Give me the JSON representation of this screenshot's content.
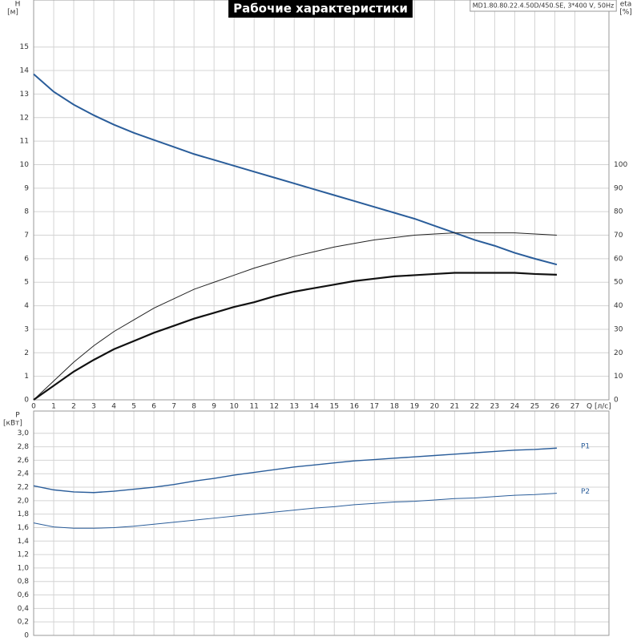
{
  "chart_data": [
    {
      "type": "line",
      "title": "Рабочие характеристики",
      "subtitle": "MD1.80.80.22.4.50D/450.SE, 3*400 V, 50Hz",
      "x_label": "Q [л/с]",
      "y_label": [
        "H",
        "[м]"
      ],
      "y2_label": [
        "eta",
        "[%]"
      ],
      "grid": true,
      "x": [
        0,
        1,
        2,
        3,
        4,
        5,
        6,
        7,
        8,
        9,
        10,
        11,
        12,
        13,
        14,
        15,
        16,
        17,
        18,
        19,
        20,
        21,
        22,
        23,
        24,
        25,
        26.1
      ],
      "xlim": [
        0,
        28.7
      ],
      "xticks": [
        0,
        1,
        2,
        3,
        4,
        5,
        6,
        7,
        8,
        9,
        10,
        11,
        12,
        13,
        14,
        15,
        16,
        17,
        18,
        19,
        20,
        21,
        22,
        23,
        24,
        25,
        26,
        27
      ],
      "ylim": [
        0,
        17
      ],
      "yticks": [
        0,
        1,
        2,
        3,
        4,
        5,
        6,
        7,
        8,
        9,
        10,
        11,
        12,
        13,
        14,
        15
      ],
      "y2lim": [
        0,
        170
      ],
      "y2ticks": [
        0,
        10,
        20,
        30,
        40,
        50,
        60,
        70,
        80,
        90,
        100
      ],
      "series": [
        {
          "color": "#2a5d9a",
          "line_width": 2,
          "values": [
            13.85,
            13.1,
            12.55,
            12.1,
            11.7,
            11.35,
            11.05,
            10.75,
            10.45,
            10.2,
            9.95,
            9.7,
            9.45,
            9.2,
            8.95,
            8.7,
            8.45,
            8.2,
            7.95,
            7.7,
            7.4,
            7.1,
            6.8,
            6.55,
            6.25,
            6.0,
            5.75
          ]
        },
        {
          "color": "#222222",
          "line_width": 1,
          "axis": "y2",
          "values": [
            0,
            8,
            16,
            23,
            29,
            34,
            39,
            43,
            47,
            50,
            53,
            56,
            58.5,
            61,
            63,
            65,
            66.5,
            68,
            69,
            70,
            70.5,
            71,
            71,
            71,
            71,
            70.5,
            70
          ]
        },
        {
          "color": "#111111",
          "line_width": 2.2,
          "axis": "y2",
          "values": [
            0,
            6,
            12,
            17,
            21.5,
            25,
            28.5,
            31.5,
            34.5,
            37,
            39.5,
            41.5,
            44,
            46,
            47.5,
            49,
            50.5,
            51.5,
            52.5,
            53,
            53.5,
            54,
            54,
            54,
            54,
            53.5,
            53.2
          ]
        }
      ]
    },
    {
      "type": "line",
      "y_label": [
        "P",
        "[кВт]"
      ],
      "grid": true,
      "x": [
        0,
        1,
        2,
        3,
        4,
        5,
        6,
        7,
        8,
        9,
        10,
        11,
        12,
        13,
        14,
        15,
        16,
        17,
        18,
        19,
        20,
        21,
        22,
        23,
        24,
        25,
        26.1
      ],
      "xlim": [
        0,
        28.7
      ],
      "ylim": [
        0,
        3.33
      ],
      "yticks": [
        0,
        {
          "value": 0.2,
          "label": "0,2"
        },
        {
          "value": 0.4,
          "label": "0,4"
        },
        {
          "value": 0.6,
          "label": "0,6"
        },
        {
          "value": 0.8,
          "label": "0,8"
        },
        {
          "value": 1.0,
          "label": "1,0"
        },
        {
          "value": 1.2,
          "label": "1,2"
        },
        {
          "value": 1.4,
          "label": "1,4"
        },
        {
          "value": 1.6,
          "label": "1,6"
        },
        {
          "value": 1.8,
          "label": "1,8"
        },
        {
          "value": 2.0,
          "label": "2,0"
        },
        {
          "value": 2.2,
          "label": "2,2"
        },
        {
          "value": 2.4,
          "label": "2,4"
        },
        {
          "value": 2.6,
          "label": "2,6"
        },
        {
          "value": 2.8,
          "label": "2,8"
        },
        {
          "value": 3.0,
          "label": "3,0"
        }
      ],
      "series": [
        {
          "name": "P1",
          "color": "#2a5d9a",
          "line_width": 1.4,
          "values": [
            2.22,
            2.16,
            2.13,
            2.12,
            2.14,
            2.17,
            2.2,
            2.24,
            2.29,
            2.33,
            2.38,
            2.42,
            2.46,
            2.5,
            2.53,
            2.56,
            2.59,
            2.61,
            2.63,
            2.65,
            2.67,
            2.69,
            2.71,
            2.73,
            2.75,
            2.76,
            2.78
          ]
        },
        {
          "name": "P2",
          "color": "#2a5d9a",
          "line_width": 1,
          "values": [
            1.67,
            1.61,
            1.59,
            1.59,
            1.6,
            1.62,
            1.65,
            1.68,
            1.71,
            1.74,
            1.77,
            1.8,
            1.83,
            1.86,
            1.89,
            1.91,
            1.94,
            1.96,
            1.98,
            1.99,
            2.01,
            2.03,
            2.04,
            2.06,
            2.08,
            2.09,
            2.11
          ]
        }
      ]
    }
  ]
}
